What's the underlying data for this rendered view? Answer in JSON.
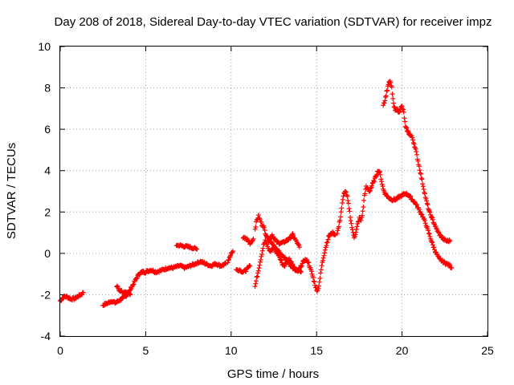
{
  "chart_data": {
    "type": "scatter",
    "title": "Day 208 of 2018, Sidereal Day-to-day VTEC variation (SDTVAR) for receiver impz",
    "xlabel": "GPS time / hours",
    "ylabel": "SDTVAR / TECUs",
    "xlim": [
      0,
      25
    ],
    "ylim": [
      -4,
      10
    ],
    "xticks": [
      "0",
      "5",
      "10",
      "15",
      "20",
      "25"
    ],
    "yticks": [
      "-4",
      "-2",
      "0",
      "2",
      "4",
      "6",
      "8",
      "10"
    ],
    "grid": true,
    "marker": "+",
    "marker_color": "#ff0000",
    "series": [
      {
        "name": "SDTVAR",
        "segments": [
          {
            "x": [
              0.0,
              0.2,
              0.4,
              0.6,
              0.8,
              1.0,
              1.2,
              1.35
            ],
            "y": [
              -2.3,
              -2.1,
              -2.1,
              -2.2,
              -2.2,
              -2.1,
              -2.0,
              -1.9
            ]
          },
          {
            "x": [
              2.5,
              2.8,
              3.0,
              3.2,
              3.4,
              3.6,
              3.8,
              4.0,
              4.2,
              4.4,
              4.6,
              4.8,
              5.0,
              5.3,
              5.6,
              6.0,
              6.3,
              6.6,
              7.0,
              7.3,
              7.6,
              7.9,
              8.2,
              8.5,
              8.8,
              9.1,
              9.4,
              9.7
            ],
            "y": [
              -2.5,
              -2.4,
              -2.3,
              -2.4,
              -2.3,
              -2.2,
              -2.1,
              -1.9,
              -1.6,
              -1.3,
              -1.0,
              -0.9,
              -0.9,
              -0.8,
              -0.9,
              -0.8,
              -0.7,
              -0.7,
              -0.6,
              -0.7,
              -0.6,
              -0.5,
              -0.4,
              -0.5,
              -0.6,
              -0.5,
              -0.6,
              -0.5
            ]
          },
          {
            "x": [
              3.3,
              3.5,
              3.7,
              3.9,
              4.1
            ],
            "y": [
              -1.6,
              -1.8,
              -1.9,
              -1.9,
              -2.0
            ]
          },
          {
            "x": [
              6.8,
              7.2,
              7.6,
              8.0
            ],
            "y": [
              0.4,
              0.35,
              0.3,
              0.2
            ]
          },
          {
            "x": [
              9.8,
              9.9,
              10.0,
              10.1
            ],
            "y": [
              -0.4,
              -0.2,
              0.0,
              0.1
            ]
          },
          {
            "x": [
              10.3,
              10.5,
              10.7,
              10.9,
              11.1
            ],
            "y": [
              -0.8,
              -0.8,
              -0.9,
              -0.8,
              -0.6
            ]
          },
          {
            "x": [
              10.7,
              10.9,
              11.1,
              11.3
            ],
            "y": [
              0.8,
              0.7,
              0.5,
              0.7
            ]
          },
          {
            "x": [
              11.4,
              11.5,
              11.6,
              11.7,
              11.8,
              11.9,
              12.0,
              12.1,
              12.2,
              12.3,
              12.4,
              12.5,
              12.6,
              12.7,
              12.8,
              12.9,
              13.0,
              13.1,
              13.2,
              13.3,
              13.4,
              13.5,
              13.6,
              13.7,
              13.8,
              13.9,
              14.0,
              14.1
            ],
            "y": [
              -1.6,
              -1.2,
              -0.8,
              -0.4,
              0.0,
              0.4,
              0.6,
              0.4,
              0.2,
              0.1,
              0.2,
              0.3,
              0.1,
              0.0,
              -0.1,
              -0.3,
              -0.5,
              -0.6,
              -0.5,
              -0.4,
              -0.3,
              -0.4,
              -0.6,
              -0.7,
              -0.8,
              -0.8,
              -0.8,
              -0.9
            ]
          },
          {
            "x": [
              11.4,
              11.5,
              11.6,
              11.7,
              11.8,
              11.9,
              12.0,
              12.2,
              12.4,
              12.6,
              12.8,
              13.0,
              13.2,
              13.4,
              13.6,
              13.8,
              14.0
            ],
            "y": [
              1.2,
              1.6,
              1.8,
              1.6,
              1.4,
              1.3,
              1.0,
              0.6,
              0.9,
              0.6,
              0.5,
              0.5,
              0.6,
              0.7,
              0.9,
              0.6,
              0.3
            ]
          },
          {
            "x": [
              12.1,
              12.3,
              12.5,
              12.7,
              12.9,
              13.1,
              13.3,
              13.5,
              13.7,
              13.9,
              14.1,
              14.3,
              14.5,
              14.7,
              14.9,
              15.0,
              15.1,
              15.2,
              15.3,
              15.5,
              15.7,
              15.9,
              16.1
            ],
            "y": [
              0.8,
              0.6,
              0.4,
              0.2,
              0.0,
              -0.2,
              -0.4,
              -0.6,
              -0.8,
              -0.9,
              -0.6,
              -0.3,
              -0.4,
              -0.9,
              -1.5,
              -1.8,
              -1.7,
              -1.2,
              -0.6,
              0.2,
              0.8,
              1.0,
              0.9
            ]
          },
          {
            "x": [
              16.2,
              16.3,
              16.4,
              16.5,
              16.6,
              16.7,
              16.8,
              16.9,
              17.0,
              17.1,
              17.2,
              17.3,
              17.4,
              17.5,
              17.6,
              17.7,
              17.8,
              17.9,
              18.0,
              18.1,
              18.2,
              18.3,
              18.4,
              18.5,
              18.6,
              18.7,
              18.8,
              18.9,
              19.0,
              19.1,
              19.2,
              19.4,
              19.6,
              19.8,
              20.0,
              20.2,
              20.4,
              20.6,
              20.8,
              21.0,
              21.2,
              21.4,
              21.6,
              21.8,
              22.0,
              22.2,
              22.4,
              22.6,
              22.8,
              22.9
            ],
            "y": [
              1.0,
              1.3,
              1.8,
              2.4,
              2.9,
              3.0,
              2.7,
              2.2,
              1.6,
              1.1,
              0.8,
              1.0,
              1.4,
              1.7,
              1.6,
              2.0,
              2.8,
              3.2,
              3.1,
              3.0,
              3.2,
              3.4,
              3.6,
              3.8,
              4.0,
              3.9,
              3.5,
              3.1,
              2.9,
              2.8,
              2.7,
              2.6,
              2.6,
              2.7,
              2.8,
              2.9,
              2.8,
              2.6,
              2.4,
              2.1,
              1.8,
              1.4,
              0.9,
              0.4,
              0.0,
              -0.3,
              -0.4,
              -0.5,
              -0.6,
              -0.7
            ]
          },
          {
            "x": [
              18.9,
              19.0,
              19.1,
              19.2,
              19.3,
              19.4,
              19.5,
              19.6,
              19.7,
              19.8,
              19.9,
              20.0,
              20.1,
              20.2,
              20.4,
              20.6,
              20.8,
              21.0,
              21.2,
              21.4,
              21.6,
              21.8,
              22.0,
              22.2,
              22.4,
              22.6,
              22.8
            ],
            "y": [
              7.2,
              7.4,
              7.8,
              8.2,
              8.3,
              8.0,
              7.2,
              6.9,
              7.0,
              6.8,
              7.0,
              7.1,
              6.8,
              6.1,
              5.8,
              5.6,
              5.0,
              4.2,
              3.4,
              2.6,
              2.0,
              1.6,
              1.2,
              0.9,
              0.7,
              0.6,
              0.6
            ]
          }
        ]
      }
    ]
  }
}
